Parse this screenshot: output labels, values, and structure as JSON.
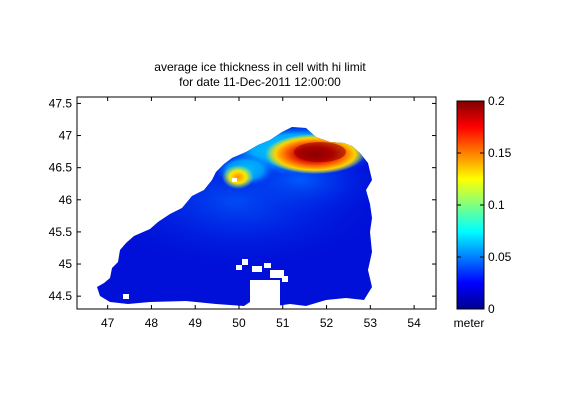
{
  "chart_data": {
    "type": "heatmap",
    "title_lines": [
      "average ice thickness in cell with hi limit",
      "for date 11-Dec-2011 12:00:00"
    ],
    "xlim": [
      46.3,
      54.5
    ],
    "ylim": [
      44.3,
      47.6
    ],
    "x_ticks": [
      47,
      48,
      49,
      50,
      51,
      52,
      53,
      54
    ],
    "y_ticks": [
      44.5,
      45,
      45.5,
      46,
      46.5,
      47,
      47.5
    ],
    "colorbar": {
      "colormap": "jet",
      "clim": [
        0,
        0.2
      ],
      "ticks": [
        0,
        0.05,
        0.1,
        0.15,
        0.2
      ],
      "label": "meter"
    },
    "field_features": [
      {
        "description": "thick ice maximum",
        "lon": 51.8,
        "lat": 46.72,
        "value": 0.2
      },
      {
        "description": "secondary maximum",
        "lon": 50.05,
        "lat": 46.35,
        "value": 0.13
      },
      {
        "description": "northern shelf band",
        "lon": 51.0,
        "lat": 46.55,
        "value": 0.07
      },
      {
        "description": "southern interior",
        "lon": 49.0,
        "lat": 45.0,
        "value": 0.01
      }
    ]
  }
}
